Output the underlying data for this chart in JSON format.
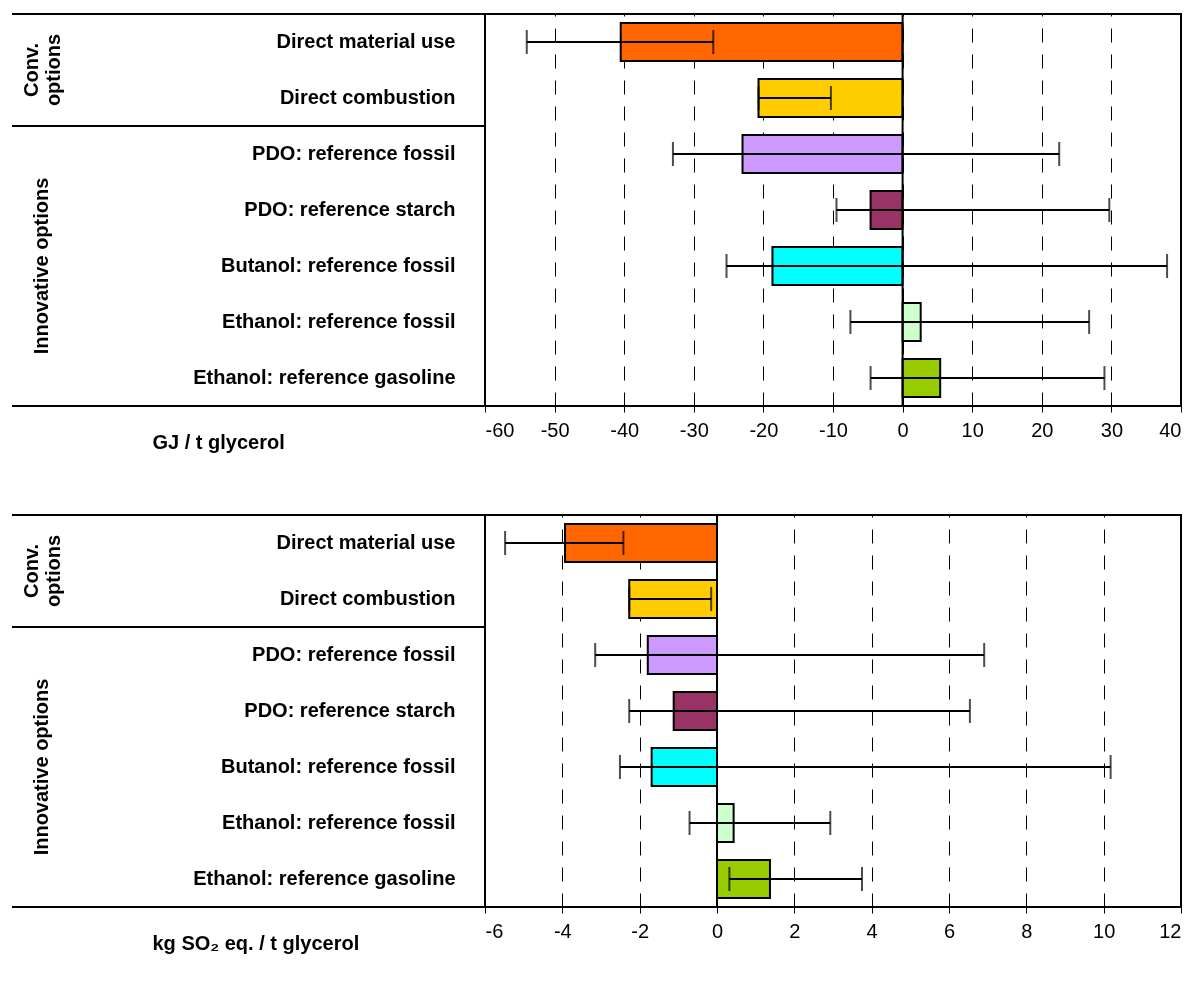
{
  "chart_data": [
    {
      "type": "bar",
      "orientation": "horizontal",
      "xlabel": "GJ / t glycerol",
      "categories": [
        "Direct material use",
        "Direct combustion",
        "PDO: reference fossil",
        "PDO: reference starch",
        "Butanol: reference fossil",
        "Ethanol: reference fossil",
        "Ethanol: reference gasoline"
      ],
      "values": [
        -40.5,
        -20.7,
        -23,
        -4.6,
        -18.7,
        2.6,
        5.4
      ],
      "colors": [
        "#ff6600",
        "#ffcc00",
        "#cc99ff",
        "#993366",
        "#00ffff",
        "#ccffcc",
        "#99cc00"
      ],
      "errors": [
        [
          -54,
          -27.2
        ],
        [
          -20.7,
          -10.3
        ],
        [
          -33,
          22.5
        ],
        [
          -9.5,
          29.7
        ],
        [
          -25.3,
          38
        ],
        [
          -7.5,
          26.8
        ],
        [
          -4.6,
          29
        ]
      ],
      "xlim": [
        -60,
        40
      ],
      "xticks": [
        -60,
        -50,
        -40,
        -30,
        -20,
        -10,
        0,
        10,
        20,
        30,
        40
      ],
      "grid": "x",
      "ref_lines": [
        {
          "axis": "x",
          "value": 0
        }
      ],
      "annotations": [
        "Conv. options",
        "Innovative options"
      ]
    },
    {
      "type": "bar",
      "orientation": "horizontal",
      "xlabel": "kg SO₂ eq. / t glycerol",
      "categories": [
        "Direct material use",
        "Direct combustion",
        "PDO: reference fossil",
        "PDO: reference starch",
        "Butanol: reference fossil",
        "Ethanol: reference fossil",
        "Ethanol: reference gasoline"
      ],
      "values": [
        -3.93,
        -2.27,
        -1.79,
        -1.12,
        -1.69,
        0.43,
        1.37
      ],
      "colors": [
        "#ff6600",
        "#ffcc00",
        "#cc99ff",
        "#993366",
        "#00ffff",
        "#ccffcc",
        "#99cc00"
      ],
      "errors": [
        [
          -5.48,
          -2.42
        ],
        [
          -2.27,
          -0.15
        ],
        [
          -3.15,
          6.91
        ],
        [
          -2.27,
          6.54
        ],
        [
          -2.51,
          10.18
        ],
        [
          -0.71,
          2.93
        ],
        [
          0.32,
          3.75
        ]
      ],
      "xlim": [
        -6,
        12
      ],
      "xticks": [
        -6,
        -4,
        -2,
        0,
        2,
        4,
        6,
        8,
        10,
        12
      ],
      "grid": "x",
      "ref_lines": [
        {
          "axis": "x",
          "value": 0
        }
      ],
      "annotations": [
        "Conv. options",
        "Innovative options"
      ]
    }
  ]
}
